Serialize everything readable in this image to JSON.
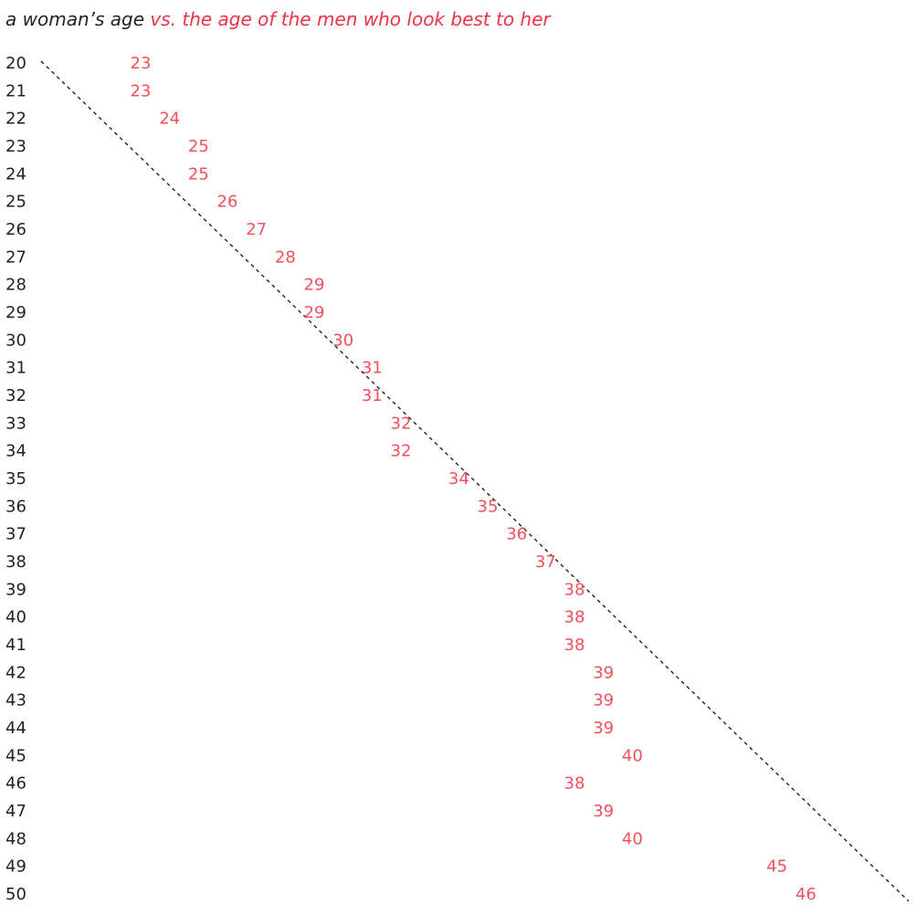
{
  "chart_data": {
    "type": "dot-text",
    "title": "a woman’s age",
    "title_color": "#222222",
    "subtitle": "vs. the age of the men who look best to her",
    "subtitle_color": "#ee3344",
    "categories": [
      20,
      21,
      22,
      23,
      24,
      25,
      26,
      27,
      28,
      29,
      30,
      31,
      32,
      33,
      34,
      35,
      36,
      37,
      38,
      39,
      40,
      41,
      42,
      43,
      44,
      45,
      46,
      47,
      48,
      49,
      50
    ],
    "values": [
      23,
      23,
      24,
      25,
      25,
      26,
      27,
      28,
      29,
      29,
      30,
      31,
      31,
      32,
      32,
      34,
      35,
      36,
      37,
      38,
      38,
      38,
      39,
      39,
      39,
      40,
      38,
      39,
      40,
      45,
      46
    ],
    "color": "#f4505c",
    "xlim": [
      20,
      50
    ],
    "diagonal": true
  }
}
